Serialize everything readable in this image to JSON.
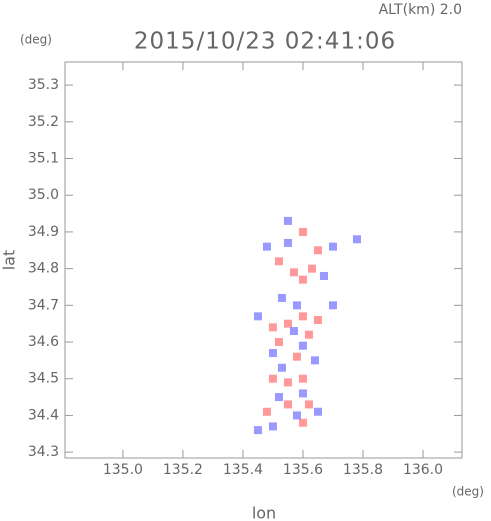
{
  "chart_data": {
    "type": "scatter",
    "title": "2015/10/23 02:41:06",
    "subtitle": "ALT(km) 2.0",
    "y_unit": "(deg)",
    "x_unit": "(deg)",
    "x_label": "lon",
    "y_label": "lat",
    "xlim": [
      134.807,
      136.13
    ],
    "ylim": [
      34.284,
      35.363
    ],
    "xticks": [
      {
        "value": 135.0,
        "label": "135.0"
      },
      135.2,
      135.4,
      135.6,
      135.8,
      {
        "value": 136.0,
        "label": "136.0"
      }
    ],
    "yticks": [
      34.3,
      34.4,
      34.5,
      34.6,
      34.7,
      34.8,
      34.9,
      {
        "value": 35.0,
        "label": "35.0"
      },
      35.1,
      35.2,
      35.3
    ],
    "series": [
      {
        "color": "#ff7f7f",
        "x": [
          135.52,
          135.57,
          135.6,
          135.63,
          135.6,
          135.5,
          135.55,
          135.6,
          135.65,
          135.52,
          135.62,
          135.5,
          135.55,
          135.6,
          135.48,
          135.55,
          135.62,
          135.6,
          135.58,
          135.65
        ],
        "y": [
          34.82,
          34.79,
          34.77,
          34.8,
          34.9,
          34.64,
          34.65,
          34.67,
          34.66,
          34.6,
          34.62,
          34.5,
          34.49,
          34.5,
          34.41,
          34.43,
          34.43,
          34.38,
          34.56,
          34.85
        ]
      },
      {
        "color": "#7f7fff",
        "x": [
          135.48,
          135.55,
          135.7,
          135.78,
          135.67,
          135.53,
          135.58,
          135.45,
          135.57,
          135.6,
          135.5,
          135.64,
          135.53,
          135.6,
          135.65,
          135.52,
          135.45,
          135.5,
          135.58,
          135.7,
          135.55
        ],
        "y": [
          34.86,
          34.87,
          34.86,
          34.88,
          34.78,
          34.72,
          34.7,
          34.67,
          34.63,
          34.59,
          34.57,
          34.55,
          34.53,
          34.46,
          34.41,
          34.45,
          34.36,
          34.37,
          34.4,
          34.7,
          34.93
        ]
      }
    ]
  }
}
